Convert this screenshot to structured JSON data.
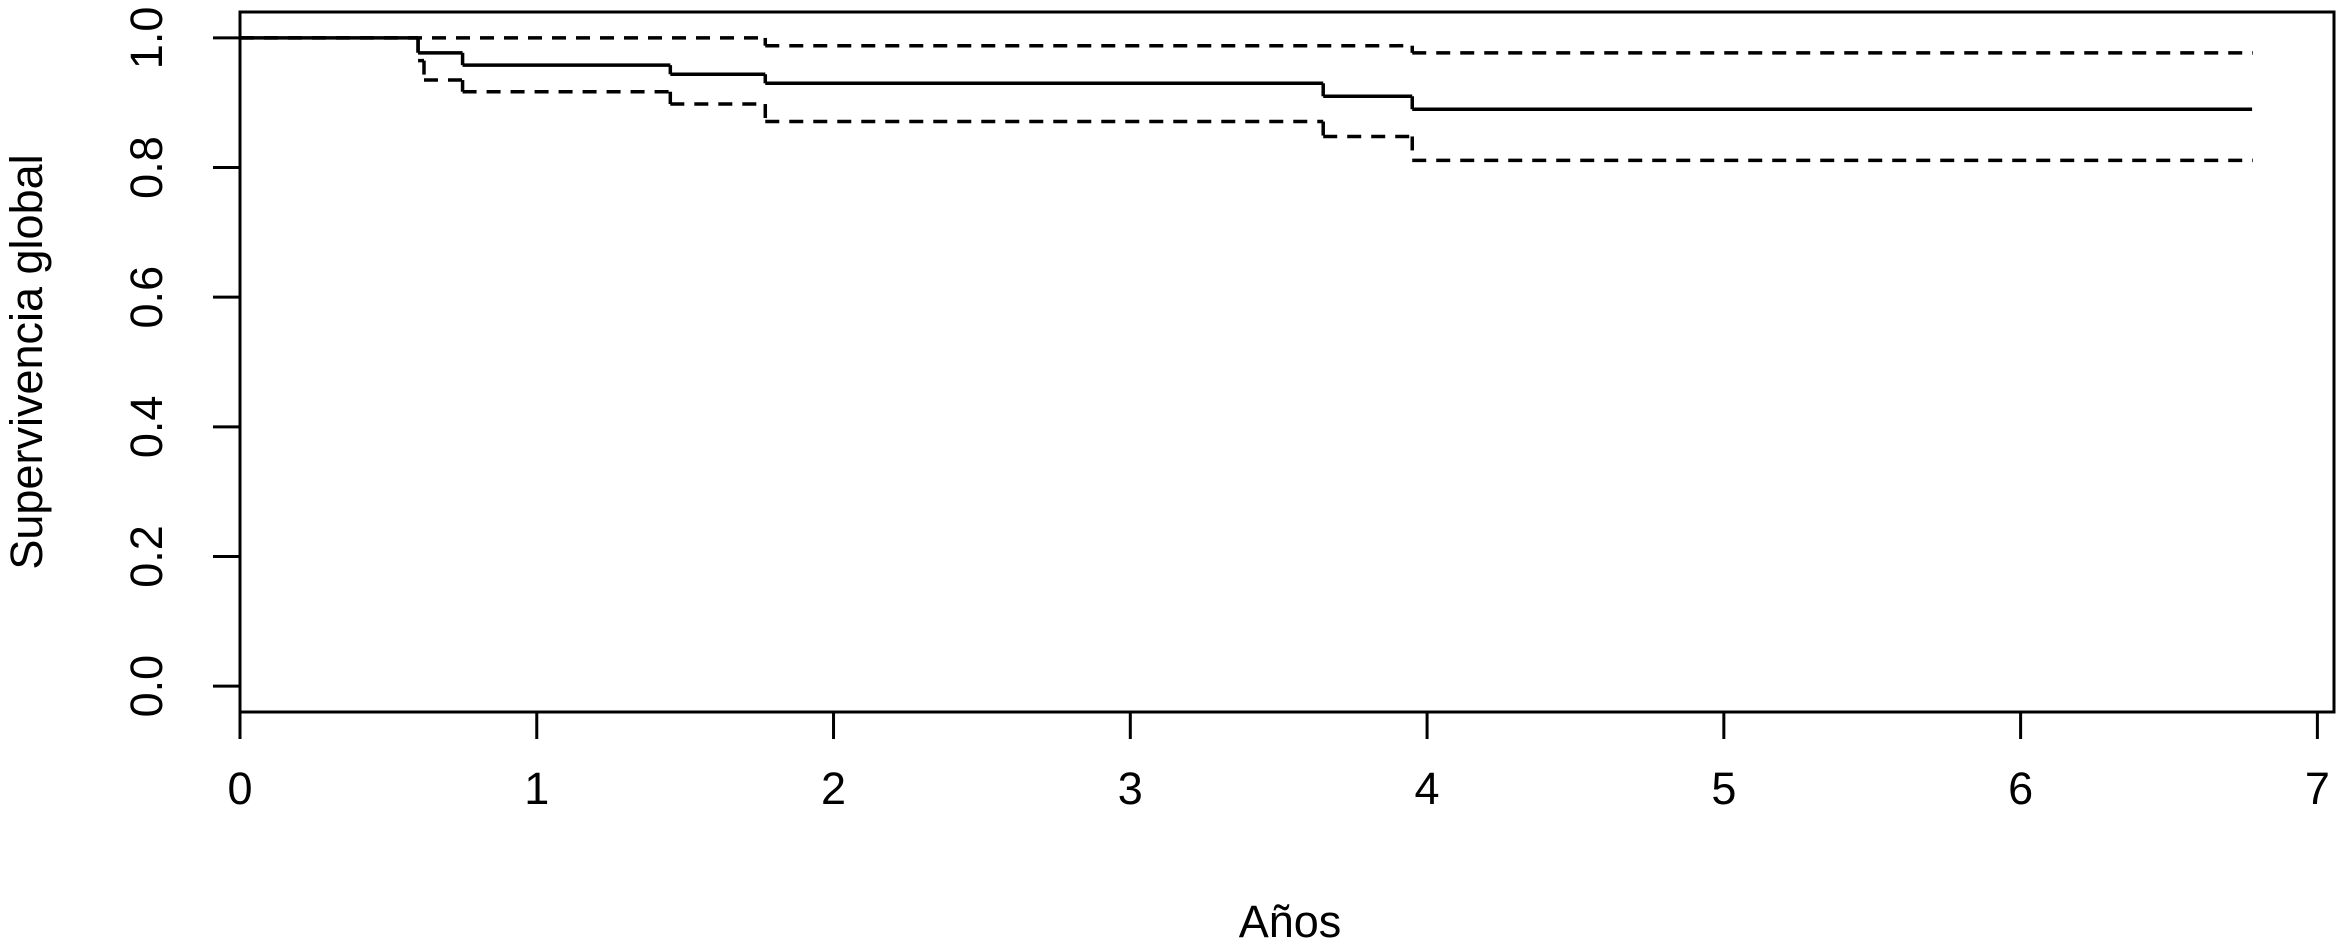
{
  "chart_data": {
    "type": "step",
    "x_label": "Años",
    "y_label": "Supervivencia global",
    "xlim": [
      0,
      7.056
    ],
    "xticks": [
      0,
      1,
      2,
      3,
      4,
      5,
      6,
      7
    ],
    "ylim": [
      -0.04,
      1.04
    ],
    "yticks": [
      {
        "value": 0,
        "label": "0.0"
      },
      {
        "value": 0.2,
        "label": "0.2"
      },
      {
        "value": 0.4,
        "label": "0.4"
      },
      {
        "value": 0.6,
        "label": "0.6"
      },
      {
        "value": 0.8,
        "label": "0.8"
      },
      {
        "value": 1,
        "label": "1.0"
      }
    ],
    "series": [
      {
        "color": "#000000",
        "dashed": false,
        "x": [
          0,
          0.6,
          0.75,
          1.45,
          1.77,
          3.65,
          3.95,
          6.78
        ],
        "values": [
          1,
          0.977,
          0.958,
          0.944,
          0.93,
          0.91,
          0.89,
          0.89
        ]
      },
      {
        "color": "#000000",
        "dashed": true,
        "x": [
          0,
          1.77,
          3.95,
          6.78
        ],
        "values": [
          1,
          0.988,
          0.977,
          0.977
        ]
      },
      {
        "color": "#000000",
        "dashed": true,
        "x": [
          0,
          0.6,
          0.62,
          0.75,
          1.45,
          1.77,
          3.65,
          3.95,
          6.78
        ],
        "values": [
          1,
          0.965,
          0.935,
          0.917,
          0.898,
          0.871,
          0.848,
          0.811,
          0.811
        ]
      }
    ]
  }
}
